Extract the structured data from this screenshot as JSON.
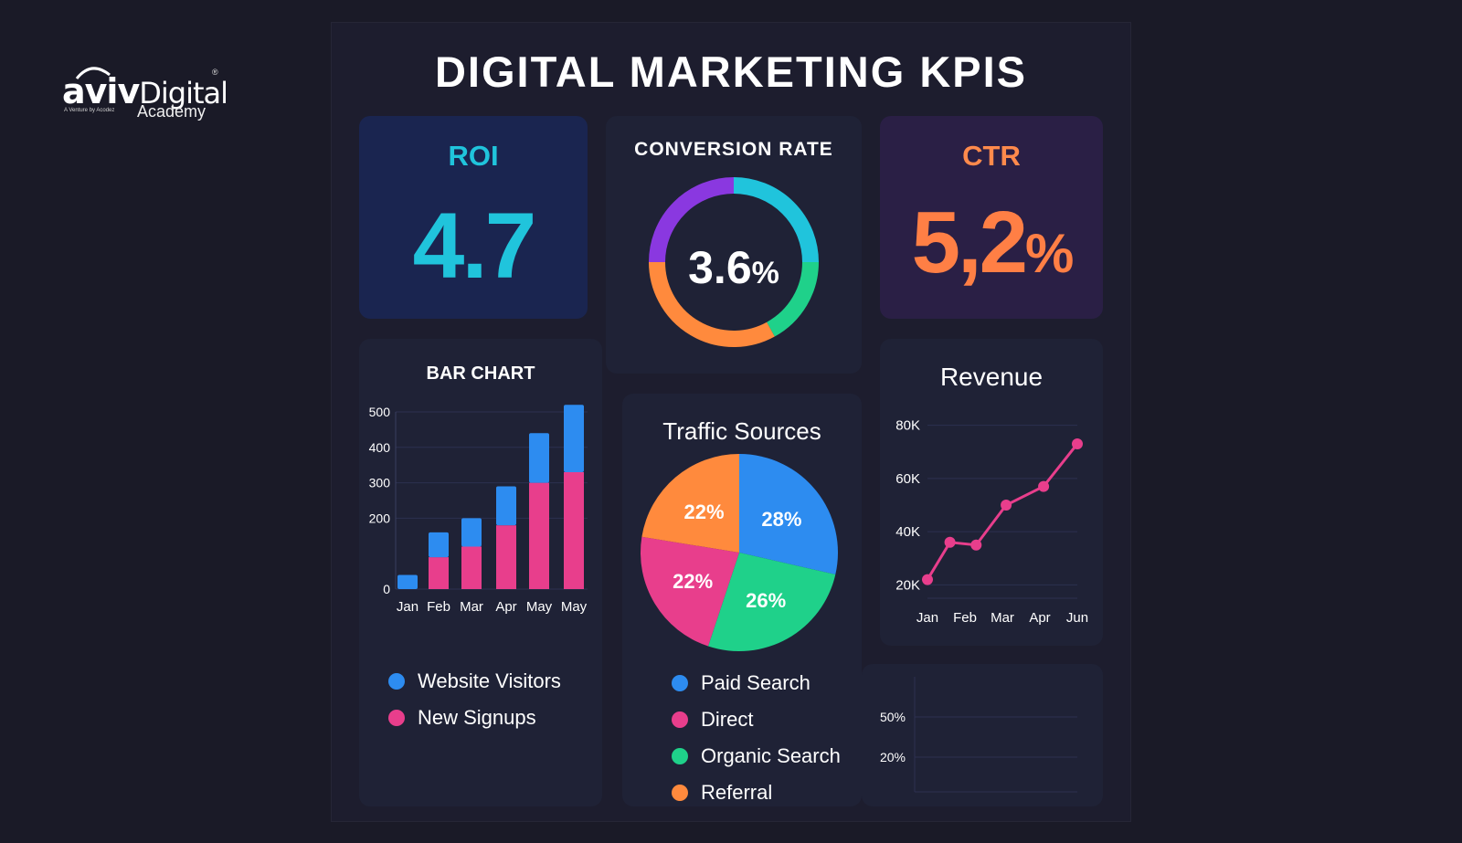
{
  "logo": {
    "brand_bold": "aviv",
    "brand_light": "Digital",
    "registered": "®",
    "tagline": "A Venture by Acodez",
    "academy": "Academy"
  },
  "dashboard": {
    "title": "DIGITAL MARKETING KPIS"
  },
  "roi": {
    "label": "ROI",
    "value": "4.7"
  },
  "conversion": {
    "label": "CONVERSION RATE",
    "value": "3.6",
    "unit": "%"
  },
  "ctr": {
    "label": "CTR",
    "value": "5,2",
    "unit": "%"
  },
  "colors": {
    "blue": "#2d8cf0",
    "pink": "#e83e8c",
    "green": "#1fd18a",
    "orange": "#ff8a3d",
    "purple": "#8a38e0",
    "cyan": "#20c4dc"
  },
  "chart_data": [
    {
      "type": "bar",
      "title": "BAR CHART",
      "categories": [
        "Jan",
        "Feb",
        "Mar",
        "Apr",
        "May",
        "May"
      ],
      "yticks": [
        "500",
        "400",
        "300",
        "200",
        "0"
      ],
      "ylim": [
        0,
        500
      ],
      "stacked": true,
      "series": [
        {
          "name": "New Signups",
          "values": [
            0,
            90,
            120,
            180,
            300,
            330
          ]
        },
        {
          "name": "Website Visitors",
          "values": [
            40,
            70,
            80,
            110,
            140,
            190
          ]
        }
      ],
      "legend": [
        "Website Visitors",
        "New Signups"
      ]
    },
    {
      "type": "pie",
      "title": "Traffic Sources",
      "slices": [
        {
          "name": "Paid Search",
          "value": 28,
          "label": "28%"
        },
        {
          "name": "Organic Search",
          "value": 26,
          "label": "26%"
        },
        {
          "name": "Direct",
          "value": 22,
          "label": "22%"
        },
        {
          "name": "Referral",
          "value": 22,
          "label": "22%"
        }
      ],
      "legend": [
        "Paid Search",
        "Direct",
        "Organic Search",
        "Referral"
      ]
    },
    {
      "type": "line",
      "title": "Revenue",
      "x": [
        "Jan",
        "Feb",
        "Mar",
        "Apr",
        "Jun"
      ],
      "yticks": [
        "80K",
        "60K",
        "40K",
        "20K"
      ],
      "ylim": [
        15000,
        85000
      ],
      "points": [
        {
          "x": 0,
          "y": 22000
        },
        {
          "x": 0.6,
          "y": 36000
        },
        {
          "x": 1.3,
          "y": 35000
        },
        {
          "x": 2.1,
          "y": 50000
        },
        {
          "x": 3.1,
          "y": 57000
        },
        {
          "x": 4.0,
          "y": 73000
        }
      ]
    },
    {
      "type": "line",
      "yticks": [
        "50%",
        "20%"
      ],
      "series": []
    }
  ],
  "conversion_donut": [
    {
      "name": "cyan",
      "value": 25
    },
    {
      "name": "green",
      "value": 17
    },
    {
      "name": "orange",
      "value": 33
    },
    {
      "name": "purple",
      "value": 25
    }
  ]
}
